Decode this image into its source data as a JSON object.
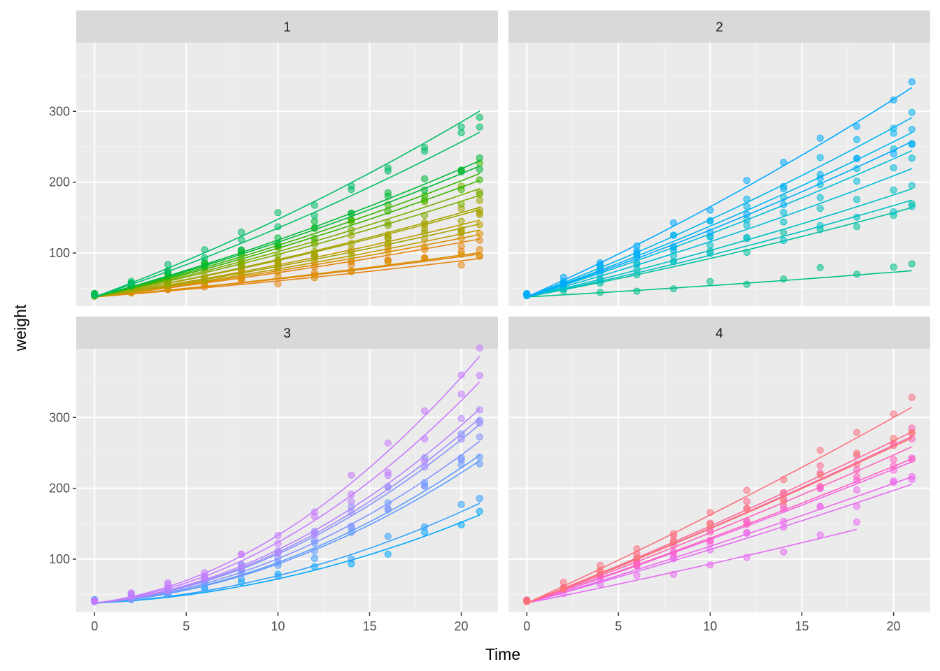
{
  "chart_data": {
    "type": "scatter",
    "facet_by": "Diet",
    "xlabel": "Time",
    "ylabel": "weight",
    "xlim": [
      -1,
      22
    ],
    "ylim": [
      25,
      397
    ],
    "x_ticks": [
      0,
      5,
      10,
      15,
      20
    ],
    "y_ticks": [
      100,
      200,
      300
    ],
    "grid": true,
    "legend": "none",
    "fit": "per-chick quadratic curves",
    "times": [
      0,
      2,
      4,
      6,
      8,
      10,
      12,
      14,
      16,
      18,
      20,
      21
    ],
    "panels": [
      {
        "label": "1",
        "series": [
          {
            "color": "#E68613",
            "w20": 98
          },
          {
            "color": "#E68613",
            "w20": 92
          },
          {
            "color": "#E68613",
            "w20": 118
          },
          {
            "color": "#D89000",
            "w20": 100
          },
          {
            "color": "#D89000",
            "w20": 124
          },
          {
            "color": "#C09B00",
            "w20": 130
          },
          {
            "color": "#C09B00",
            "w20": 143
          },
          {
            "color": "#A3A500",
            "w20": 138
          },
          {
            "color": "#A3A500",
            "w20": 160
          },
          {
            "color": "#A3A500",
            "w20": 157
          },
          {
            "color": "#7CAE00",
            "w20": 176
          },
          {
            "color": "#7CAE00",
            "w20": 185
          },
          {
            "color": "#39B600",
            "w20": 196
          },
          {
            "color": "#39B600",
            "w20": 205
          },
          {
            "color": "#00BA38",
            "w20": 215
          },
          {
            "color": "#00BA38",
            "w20": 222
          },
          {
            "color": "#00BE67",
            "w20": 260
          },
          {
            "color": "#00BE67",
            "w20": 288
          }
        ]
      },
      {
        "label": "2",
        "series": [
          {
            "color": "#00C08B",
            "w20": 76
          },
          {
            "color": "#00C19F",
            "w20": 160
          },
          {
            "color": "#00BFC4",
            "w20": 170
          },
          {
            "color": "#00BFC4",
            "w20": 185
          },
          {
            "color": "#00BCD8",
            "w20": 212
          },
          {
            "color": "#00BCD8",
            "w20": 236
          },
          {
            "color": "#00B4F0",
            "w20": 260
          },
          {
            "color": "#00B4F0",
            "w20": 280
          },
          {
            "color": "#00A9FF",
            "w20": 248
          },
          {
            "color": "#00A9FF",
            "w20": 320
          }
        ]
      },
      {
        "label": "3",
        "series": [
          {
            "color": "#00A9FF",
            "w20": 155
          },
          {
            "color": "#35A2FF",
            "w20": 170
          },
          {
            "color": "#619CFF",
            "w20": 225
          },
          {
            "color": "#619CFF",
            "w20": 232
          },
          {
            "color": "#8494FF",
            "w20": 250
          },
          {
            "color": "#8494FF",
            "w20": 272
          },
          {
            "color": "#9F8CFF",
            "w20": 280
          },
          {
            "color": "#B983FF",
            "w20": 292
          },
          {
            "color": "#C77CFF",
            "w20": 327
          },
          {
            "color": "#C77CFF",
            "w20": 360
          }
        ]
      },
      {
        "label": "4",
        "series": [
          {
            "color": "#E76BF3",
            "w20": 200
          },
          {
            "color": "#E76BF3",
            "w18": 145
          },
          {
            "color": "#ED68ED",
            "w20": 210
          },
          {
            "color": "#F564E3",
            "w20": 230
          },
          {
            "color": "#FF61C3",
            "w20": 234
          },
          {
            "color": "#FF62BC",
            "w20": 250
          },
          {
            "color": "#FF64B0",
            "w20": 264
          },
          {
            "color": "#FF6A98",
            "w20": 270
          },
          {
            "color": "#FC717F",
            "w20": 303
          },
          {
            "color": "#F8766D",
            "w20": 262
          }
        ]
      }
    ]
  }
}
